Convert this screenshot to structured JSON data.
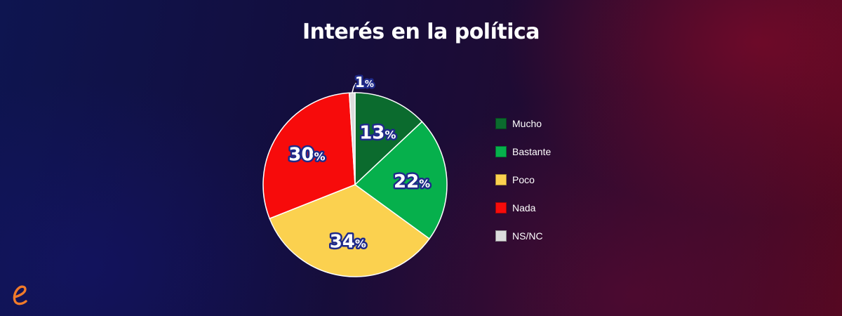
{
  "chart_data": {
    "type": "pie",
    "title": "Interés en la política",
    "categories": [
      "Mucho",
      "Bastante",
      "Poco",
      "Nada",
      "NS/NC"
    ],
    "values": [
      13,
      22,
      34,
      30,
      1
    ],
    "unit": "%",
    "colors": [
      "#0b6b2e",
      "#06b04c",
      "#fbd14f",
      "#f70b0b",
      "#dcdcdc"
    ],
    "legend": "right",
    "start": "12 o'clock, clockwise"
  },
  "logo": {
    "icon": "e-logo-icon",
    "color": "#f07a2a"
  }
}
